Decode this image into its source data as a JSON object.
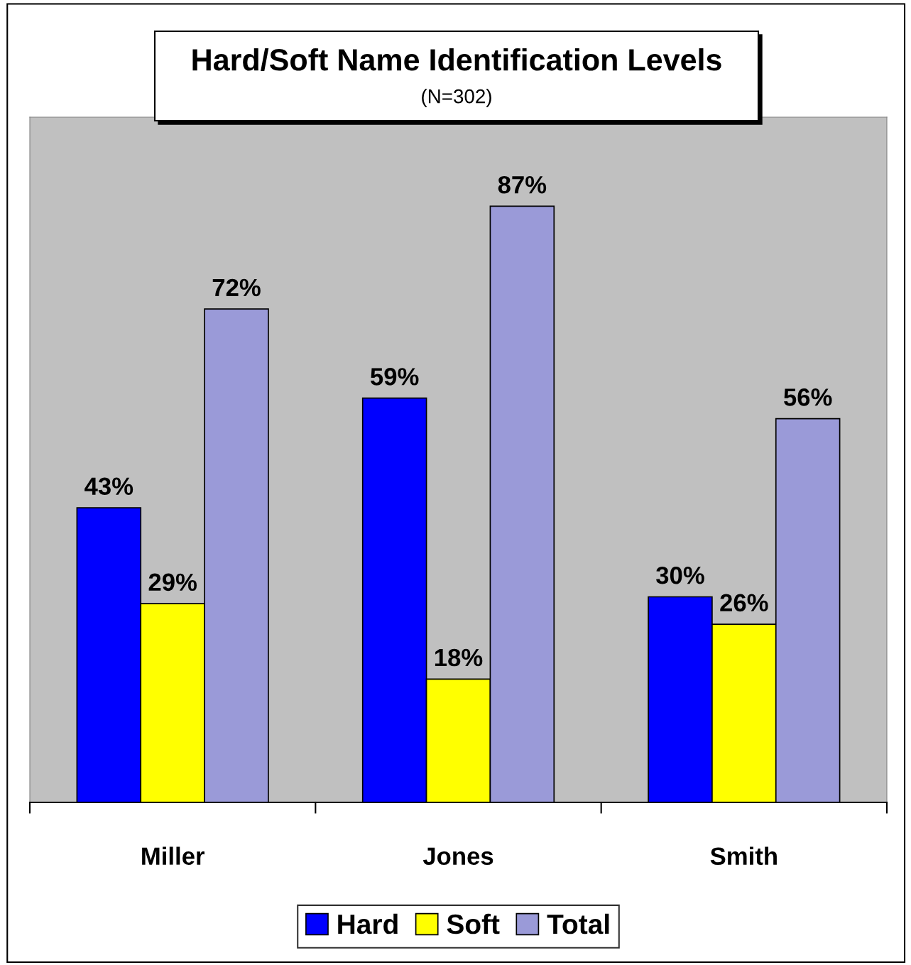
{
  "chart_data": {
    "type": "bar",
    "title": "Hard/Soft Name Identification Levels",
    "subtitle": "(N=302)",
    "categories": [
      "Miller",
      "Jones",
      "Smith"
    ],
    "series": [
      {
        "name": "Hard",
        "color": "#0000ff",
        "values": [
          43,
          59,
          30
        ],
        "value_labels": [
          "43%",
          "59%",
          "30%"
        ]
      },
      {
        "name": "Soft",
        "color": "#ffff00",
        "values": [
          29,
          18,
          26
        ],
        "value_labels": [
          "29%",
          "18%",
          "26%"
        ]
      },
      {
        "name": "Total",
        "color": "#9a9ad8",
        "values": [
          72,
          87,
          56
        ],
        "value_labels": [
          "72%",
          "87%",
          "56%"
        ]
      }
    ],
    "ylim": [
      0,
      100
    ],
    "grid": false,
    "legend": "bottom"
  }
}
